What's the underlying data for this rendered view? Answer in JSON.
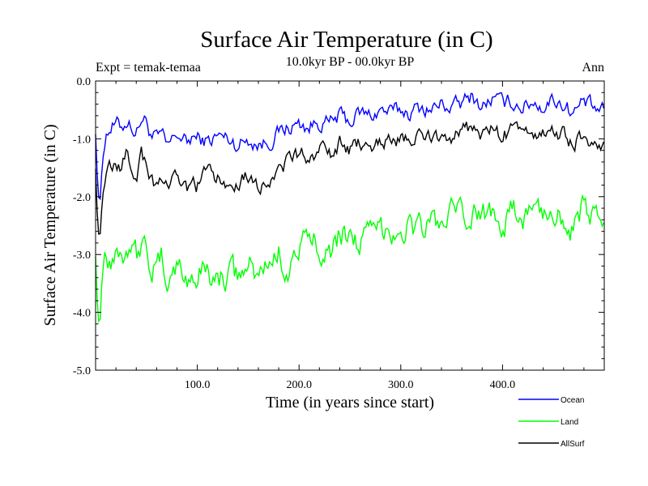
{
  "chart_data": {
    "type": "line",
    "title": "Surface Air Temperature (in C)",
    "subtitle": "10.0kyr BP - 00.0kyr BP",
    "left_label": "Expt = temak-temaa",
    "right_label": "Ann",
    "xlabel": "Time (in years since start)",
    "ylabel": "Surface Air Temperature (in C)",
    "xlim": [
      0,
      500
    ],
    "ylim": [
      -5.0,
      0.0
    ],
    "x_ticks": [
      {
        "value": 100,
        "label": "100.0"
      },
      {
        "value": 200,
        "label": "200.0"
      },
      {
        "value": 300,
        "label": "300.0"
      },
      {
        "value": 400,
        "label": "400.0"
      }
    ],
    "y_ticks": [
      {
        "value": 0.0,
        "label": "0.0"
      },
      {
        "value": -1.0,
        "label": "-1.0"
      },
      {
        "value": -2.0,
        "label": "-2.0"
      },
      {
        "value": -3.0,
        "label": "-3.0"
      },
      {
        "value": -4.0,
        "label": "-4.0"
      },
      {
        "value": -5.0,
        "label": "-5.0"
      }
    ],
    "legend_position": "bottom-right",
    "series": [
      {
        "name": "Ocean",
        "color": "#0000ff",
        "x": [
          0,
          2,
          4,
          6,
          8,
          10,
          15,
          20,
          25,
          30,
          35,
          40,
          45,
          50,
          55,
          60,
          65,
          70,
          75,
          80,
          85,
          90,
          95,
          100,
          110,
          120,
          130,
          140,
          150,
          160,
          170,
          180,
          190,
          200,
          210,
          220,
          230,
          240,
          250,
          260,
          270,
          280,
          290,
          300,
          310,
          320,
          330,
          340,
          350,
          360,
          370,
          380,
          390,
          400,
          410,
          420,
          430,
          440,
          450,
          460,
          470,
          480,
          490,
          500
        ],
        "values": [
          -0.9,
          -1.8,
          -2.2,
          -1.6,
          -1.1,
          -0.9,
          -0.8,
          -0.75,
          -0.8,
          -0.7,
          -0.75,
          -0.9,
          -0.65,
          -0.7,
          -0.95,
          -1.0,
          -0.95,
          -1.15,
          -1.05,
          -0.9,
          -1.0,
          -1.1,
          -0.95,
          -1.0,
          -1.05,
          -0.95,
          -1.0,
          -1.1,
          -1.0,
          -1.1,
          -1.05,
          -0.9,
          -0.8,
          -0.75,
          -0.8,
          -0.7,
          -0.75,
          -0.6,
          -0.7,
          -0.55,
          -0.6,
          -0.5,
          -0.55,
          -0.5,
          -0.55,
          -0.45,
          -0.5,
          -0.4,
          -0.45,
          -0.4,
          -0.25,
          -0.45,
          -0.3,
          -0.4,
          -0.35,
          -0.45,
          -0.35,
          -0.45,
          -0.3,
          -0.4,
          -0.55,
          -0.35,
          -0.5,
          -0.55
        ]
      },
      {
        "name": "Land",
        "color": "#00ff00",
        "x": [
          0,
          2,
          4,
          6,
          8,
          10,
          15,
          20,
          25,
          30,
          35,
          40,
          45,
          50,
          55,
          60,
          65,
          70,
          75,
          80,
          85,
          90,
          95,
          100,
          110,
          120,
          130,
          140,
          150,
          160,
          170,
          180,
          190,
          200,
          210,
          220,
          230,
          240,
          250,
          260,
          270,
          280,
          290,
          300,
          310,
          320,
          330,
          340,
          350,
          360,
          370,
          380,
          390,
          400,
          410,
          420,
          430,
          440,
          450,
          460,
          470,
          480,
          490,
          500
        ],
        "values": [
          -3.0,
          -4.0,
          -4.3,
          -3.5,
          -3.0,
          -2.9,
          -3.1,
          -2.8,
          -3.0,
          -2.9,
          -2.7,
          -3.0,
          -2.8,
          -2.9,
          -3.2,
          -3.3,
          -3.1,
          -3.4,
          -3.3,
          -3.2,
          -3.3,
          -3.5,
          -3.3,
          -3.4,
          -3.2,
          -3.5,
          -3.3,
          -3.4,
          -3.2,
          -3.4,
          -3.1,
          -3.0,
          -3.2,
          -2.9,
          -2.8,
          -2.8,
          -2.9,
          -2.7,
          -2.6,
          -2.8,
          -2.7,
          -2.6,
          -2.5,
          -2.6,
          -2.5,
          -2.55,
          -2.4,
          -2.5,
          -2.3,
          -2.4,
          -2.35,
          -2.3,
          -2.2,
          -2.4,
          -2.3,
          -2.35,
          -2.2,
          -2.3,
          -2.25,
          -2.3,
          -2.6,
          -2.2,
          -2.4,
          -2.5
        ]
      },
      {
        "name": "AllSurf",
        "color": "#000000",
        "x": [
          0,
          2,
          4,
          6,
          8,
          10,
          15,
          20,
          25,
          30,
          35,
          40,
          45,
          50,
          55,
          60,
          65,
          70,
          75,
          80,
          85,
          90,
          95,
          100,
          110,
          120,
          130,
          140,
          150,
          160,
          170,
          180,
          190,
          200,
          210,
          220,
          230,
          240,
          250,
          260,
          270,
          280,
          290,
          300,
          310,
          320,
          330,
          340,
          350,
          360,
          370,
          380,
          390,
          400,
          410,
          420,
          430,
          440,
          450,
          460,
          470,
          480,
          490,
          500
        ],
        "values": [
          -1.5,
          -2.5,
          -2.8,
          -2.2,
          -1.8,
          -1.6,
          -1.5,
          -1.4,
          -1.5,
          -1.3,
          -1.4,
          -1.6,
          -1.3,
          -1.4,
          -1.7,
          -1.8,
          -1.7,
          -1.9,
          -1.8,
          -1.7,
          -1.8,
          -1.9,
          -1.7,
          -1.8,
          -1.6,
          -1.7,
          -1.8,
          -1.7,
          -1.6,
          -1.8,
          -1.7,
          -1.5,
          -1.4,
          -1.3,
          -1.3,
          -1.2,
          -1.3,
          -1.1,
          -1.2,
          -1.1,
          -1.1,
          -1.0,
          -1.05,
          -1.0,
          -1.05,
          -0.95,
          -1.0,
          -0.9,
          -0.95,
          -0.9,
          -0.8,
          -0.95,
          -0.85,
          -0.95,
          -0.85,
          -0.95,
          -0.85,
          -0.95,
          -0.85,
          -0.9,
          -1.1,
          -0.9,
          -1.05,
          -1.15
        ]
      }
    ]
  }
}
